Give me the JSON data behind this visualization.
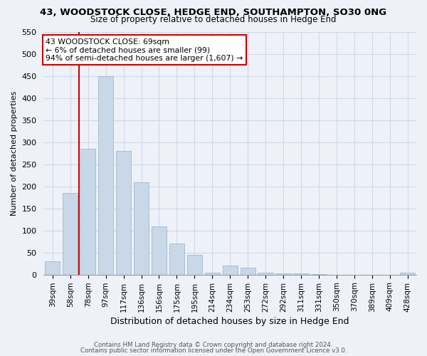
{
  "title1": "43, WOODSTOCK CLOSE, HEDGE END, SOUTHAMPTON, SO30 0NG",
  "title2": "Size of property relative to detached houses in Hedge End",
  "xlabel": "Distribution of detached houses by size in Hedge End",
  "ylabel": "Number of detached properties",
  "categories": [
    "39sqm",
    "58sqm",
    "78sqm",
    "97sqm",
    "117sqm",
    "136sqm",
    "156sqm",
    "175sqm",
    "195sqm",
    "214sqm",
    "234sqm",
    "253sqm",
    "272sqm",
    "292sqm",
    "311sqm",
    "331sqm",
    "350sqm",
    "370sqm",
    "389sqm",
    "409sqm",
    "428sqm"
  ],
  "bar_heights": [
    30,
    185,
    285,
    450,
    280,
    210,
    110,
    70,
    45,
    5,
    20,
    15,
    5,
    2,
    2,
    1,
    0,
    0,
    0,
    0,
    5
  ],
  "bar_color": "#c8d8e8",
  "bar_edge_color": "#a0b8d0",
  "grid_color": "#d0d8e8",
  "background_color": "#eef2f8",
  "red_line_x": 1.5,
  "annotation_line1": "43 WOODSTOCK CLOSE: 69sqm",
  "annotation_line2": "← 6% of detached houses are smaller (99)",
  "annotation_line3": "94% of semi-detached houses are larger (1,607) →",
  "annotation_box_color": "#ffffff",
  "annotation_border_color": "#cc0000",
  "ylim": [
    0,
    550
  ],
  "yticks": [
    0,
    50,
    100,
    150,
    200,
    250,
    300,
    350,
    400,
    450,
    500,
    550
  ],
  "footer1": "Contains HM Land Registry data © Crown copyright and database right 2024.",
  "footer2": "Contains public sector information licensed under the Open Government Licence v3.0.",
  "title1_fontsize": 9.5,
  "title2_fontsize": 8.5,
  "ylabel_fontsize": 8.0,
  "xlabel_fontsize": 9.0,
  "tick_fontsize": 7.5,
  "ytick_fontsize": 8.0,
  "annotation_fontsize": 7.8,
  "footer_fontsize": 6.2
}
